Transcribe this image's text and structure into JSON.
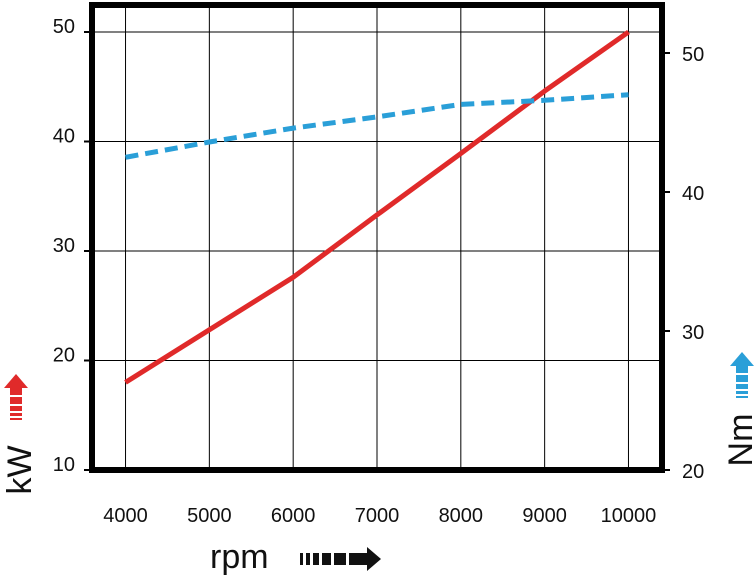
{
  "chart_data": {
    "type": "line",
    "x": [
      4000,
      5000,
      6000,
      7000,
      8000,
      9000,
      10000
    ],
    "x_ticks": [
      "4000",
      "5000",
      "6000",
      "7000",
      "8000",
      "9000",
      "10000"
    ],
    "xlabel": "rpm",
    "xlim": [
      3600,
      10400
    ],
    "y_left": {
      "label": "kW",
      "ticks": [
        "10",
        "20",
        "30",
        "40",
        "50"
      ],
      "range": [
        10,
        50
      ]
    },
    "y_right": {
      "label": "Nm",
      "ticks": [
        "20",
        "30",
        "40",
        "50"
      ],
      "range": [
        20,
        52.5
      ]
    },
    "series": [
      {
        "axis": "left",
        "color": "#e02a2a",
        "style": "solid",
        "values": [
          18.0,
          22.8,
          27.6,
          33.3,
          38.9,
          44.6,
          50.0
        ]
      },
      {
        "axis": "right",
        "color": "#2a9fd8",
        "style": "dashed",
        "values": [
          42.5,
          43.6,
          44.6,
          45.4,
          46.3,
          46.6,
          47.0
        ]
      }
    ],
    "grid": true,
    "legend": "none",
    "colors": {
      "frame": "#000000",
      "grid": "#000000",
      "kw_arrow": "#e02a2a",
      "nm_arrow": "#2a9fd8",
      "rpm_arrow": "#111111"
    }
  }
}
